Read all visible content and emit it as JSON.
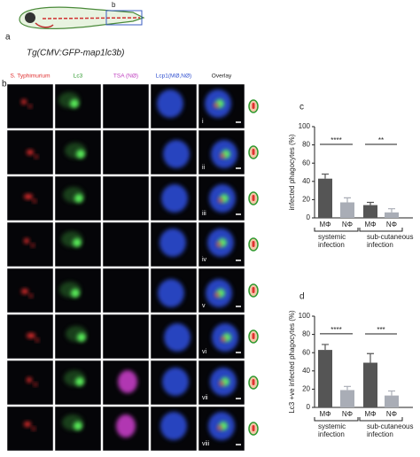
{
  "panel_a": {
    "label": "a",
    "box_label": "b",
    "caption": "Tg(CMV:GFP-map1lc3b)"
  },
  "panel_b": {
    "label": "b",
    "columns": [
      "S. Typhimurium",
      "Lc3",
      "TSA (NØ)",
      "Lcp1(MØ,NØ)",
      "Overlay"
    ],
    "rows": [
      "i",
      "ii",
      "iii",
      "iv",
      "v",
      "vi",
      "vii",
      "viii"
    ]
  },
  "chart_data": [
    {
      "type": "bar",
      "panel": "c",
      "ylabel": "infected phagocytes (%)",
      "categories": [
        "MΦ",
        "NΦ",
        "MΦ",
        "NΦ"
      ],
      "values": [
        43,
        17,
        14,
        6
      ],
      "errors": [
        5,
        5,
        3,
        4
      ],
      "colors": [
        "#555555",
        "#a9adb6",
        "#555555",
        "#a9adb6"
      ],
      "groups": [
        [
          "systemic",
          "infection"
        ],
        [
          "sub-cutaneous",
          "infection"
        ]
      ],
      "significance": [
        "****",
        "**"
      ],
      "ylim": [
        0,
        100
      ],
      "yticks": [
        0,
        20,
        40,
        60,
        80,
        100
      ]
    },
    {
      "type": "bar",
      "panel": "d",
      "ylabel": "Lc3 +ve infected phagocytes (%)",
      "categories": [
        "MΦ",
        "NΦ",
        "MΦ",
        "NΦ"
      ],
      "values": [
        63,
        19,
        49,
        13
      ],
      "errors": [
        6,
        4,
        10,
        5
      ],
      "colors": [
        "#555555",
        "#a9adb6",
        "#555555",
        "#a9adb6"
      ],
      "groups": [
        [
          "systemic",
          "infection"
        ],
        [
          "sub-cutaneous",
          "infection"
        ]
      ],
      "significance": [
        "****",
        "***"
      ],
      "ylim": [
        0,
        100
      ],
      "yticks": [
        0,
        20,
        40,
        60,
        80,
        100
      ]
    }
  ]
}
